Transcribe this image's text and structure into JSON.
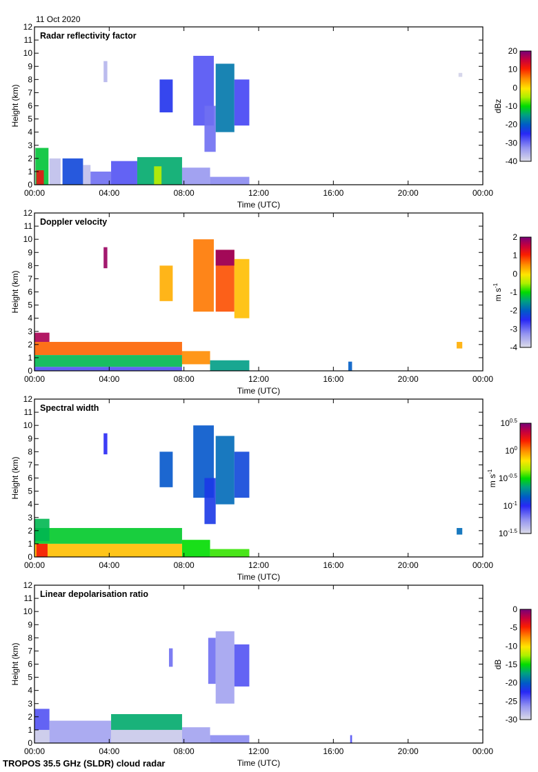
{
  "date_label": "11 Oct 2020",
  "footer": "TROPOS 35.5 GHz (SLDR) cloud radar",
  "chart_data": [
    {
      "type": "heatmap",
      "title": "Radar reflectivity factor",
      "xlabel": "Time (UTC)",
      "ylabel": "Height (km)",
      "xticks": [
        "00:00",
        "04:00",
        "08:00",
        "12:00",
        "16:00",
        "20:00",
        "00:00"
      ],
      "yticks": [
        "0",
        "1",
        "2",
        "3",
        "4",
        "5",
        "6",
        "7",
        "8",
        "9",
        "10",
        "11",
        "12"
      ],
      "ylim": [
        0,
        12
      ],
      "xlim_hours": [
        0,
        24
      ],
      "colorbar": {
        "label": "dBz",
        "range": [
          -40,
          20
        ],
        "ticks": [
          "20",
          "10",
          "0",
          "-10",
          "-20",
          "-30",
          "-40"
        ],
        "tick_values": [
          20,
          10,
          0,
          -10,
          -20,
          -30,
          -40
        ]
      },
      "regions": [
        {
          "t0": 0.05,
          "t1": 0.75,
          "h0": 0,
          "h1": 2.8,
          "v": -12
        },
        {
          "t0": 0.1,
          "t1": 0.5,
          "h0": 0,
          "h1": 1.1,
          "v": 12
        },
        {
          "t0": 0.8,
          "t1": 1.4,
          "h0": 0,
          "h1": 2.0,
          "v": -37
        },
        {
          "t0": 1.5,
          "t1": 2.6,
          "h0": 0,
          "h1": 2.0,
          "v": -22
        },
        {
          "t0": 2.6,
          "t1": 3.0,
          "h0": 0,
          "h1": 1.5,
          "v": -37
        },
        {
          "t0": 3.0,
          "t1": 4.1,
          "h0": 0,
          "h1": 1.0,
          "v": -30
        },
        {
          "t0": 4.1,
          "t1": 5.5,
          "h0": 0,
          "h1": 1.8,
          "v": -28
        },
        {
          "t0": 5.5,
          "t1": 7.9,
          "h0": 0,
          "h1": 2.1,
          "v": -14
        },
        {
          "t0": 6.4,
          "t1": 6.8,
          "h0": 0,
          "h1": 1.4,
          "v": -4
        },
        {
          "t0": 7.9,
          "t1": 9.4,
          "h0": 0,
          "h1": 1.3,
          "v": -33
        },
        {
          "t0": 9.4,
          "t1": 11.5,
          "h0": 0,
          "h1": 0.6,
          "v": -32
        },
        {
          "t0": 3.7,
          "t1": 3.9,
          "h0": 7.8,
          "h1": 9.4,
          "v": -36
        },
        {
          "t0": 6.7,
          "t1": 7.4,
          "h0": 5.5,
          "h1": 8.0,
          "v": -24
        },
        {
          "t0": 8.5,
          "t1": 9.6,
          "h0": 4.5,
          "h1": 9.8,
          "v": -28
        },
        {
          "t0": 9.1,
          "t1": 9.7,
          "h0": 2.5,
          "h1": 6.0,
          "v": -30
        },
        {
          "t0": 9.7,
          "t1": 10.7,
          "h0": 4.0,
          "h1": 9.2,
          "v": -18
        },
        {
          "t0": 10.7,
          "t1": 11.5,
          "h0": 4.5,
          "h1": 8.0,
          "v": -27
        },
        {
          "t0": 22.7,
          "t1": 22.9,
          "h0": 8.2,
          "h1": 8.5,
          "v": -39
        }
      ]
    },
    {
      "type": "heatmap",
      "title": "Doppler velocity",
      "xlabel": "Time (UTC)",
      "ylabel": "Height (km)",
      "xticks": [
        "00:00",
        "04:00",
        "08:00",
        "12:00",
        "16:00",
        "20:00",
        "00:00"
      ],
      "yticks": [
        "0",
        "1",
        "2",
        "3",
        "4",
        "5",
        "6",
        "7",
        "8",
        "9",
        "10",
        "11",
        "12"
      ],
      "ylim": [
        0,
        12
      ],
      "xlim_hours": [
        0,
        24
      ],
      "colorbar": {
        "label": "m s-1",
        "range": [
          -4,
          2
        ],
        "ticks": [
          "2",
          "1",
          "0",
          "-1",
          "-2",
          "-3",
          "-4"
        ],
        "tick_values": [
          2,
          1,
          0,
          -1,
          -2,
          -3,
          -4
        ]
      },
      "regions": [
        {
          "t0": 0.0,
          "t1": 7.9,
          "h0": 1.2,
          "h1": 2.2,
          "v": 0.7
        },
        {
          "t0": 0.0,
          "t1": 0.8,
          "h0": 2.2,
          "h1": 2.9,
          "v": 1.7
        },
        {
          "t0": 0.0,
          "t1": 7.9,
          "h0": 0.3,
          "h1": 1.2,
          "v": -1.3
        },
        {
          "t0": 0.0,
          "t1": 7.9,
          "h0": 0,
          "h1": 0.3,
          "v": -2.8
        },
        {
          "t0": 7.9,
          "t1": 9.4,
          "h0": 0.5,
          "h1": 1.5,
          "v": 0.5
        },
        {
          "t0": 9.4,
          "t1": 11.5,
          "h0": 0,
          "h1": 0.8,
          "v": -1.5
        },
        {
          "t0": 3.7,
          "t1": 3.9,
          "h0": 7.8,
          "h1": 9.4,
          "v": 1.8
        },
        {
          "t0": 6.7,
          "t1": 7.4,
          "h0": 5.3,
          "h1": 8.0,
          "v": 0.3
        },
        {
          "t0": 8.5,
          "t1": 9.6,
          "h0": 4.5,
          "h1": 10.0,
          "v": 0.6
        },
        {
          "t0": 9.7,
          "t1": 10.7,
          "h0": 4.5,
          "h1": 9.2,
          "v": 0.8
        },
        {
          "t0": 9.7,
          "t1": 10.7,
          "h0": 8.0,
          "h1": 9.2,
          "v": 1.8
        },
        {
          "t0": 10.7,
          "t1": 11.5,
          "h0": 4.0,
          "h1": 8.5,
          "v": 0.2
        },
        {
          "t0": 22.6,
          "t1": 22.9,
          "h0": 1.7,
          "h1": 2.2,
          "v": 0.3
        },
        {
          "t0": 16.8,
          "t1": 17.0,
          "h0": 0,
          "h1": 0.7,
          "v": -2.0
        }
      ]
    },
    {
      "type": "heatmap",
      "title": "Spectral width",
      "xlabel": "Time (UTC)",
      "ylabel": "Height (km)",
      "xticks": [
        "00:00",
        "04:00",
        "08:00",
        "12:00",
        "16:00",
        "20:00",
        "00:00"
      ],
      "yticks": [
        "0",
        "1",
        "2",
        "3",
        "4",
        "5",
        "6",
        "7",
        "8",
        "9",
        "10",
        "11",
        "12"
      ],
      "ylim": [
        0,
        12
      ],
      "xlim_hours": [
        0,
        24
      ],
      "colorbar": {
        "label": "m s-1",
        "range": [
          -1.5,
          0.5
        ],
        "scale": "log10",
        "ticks": [
          "10^0.5",
          "10^0",
          "10^-0.5",
          "10^-1",
          "10^-1.5"
        ],
        "tick_values": [
          0.5,
          0,
          -0.5,
          -1,
          -1.5
        ]
      },
      "regions": [
        {
          "t0": 0.0,
          "t1": 7.9,
          "h0": 1.0,
          "h1": 2.2,
          "v": -0.55
        },
        {
          "t0": 0.0,
          "t1": 0.8,
          "h0": 1.2,
          "h1": 2.9,
          "v": -0.6
        },
        {
          "t0": 0.0,
          "t1": 7.9,
          "h0": 0,
          "h1": 1.0,
          "v": -0.1
        },
        {
          "t0": 0.1,
          "t1": 0.7,
          "h0": 0,
          "h1": 1.0,
          "v": 0.2
        },
        {
          "t0": 7.9,
          "t1": 9.4,
          "h0": 0,
          "h1": 1.3,
          "v": -0.5
        },
        {
          "t0": 9.4,
          "t1": 11.5,
          "h0": 0,
          "h1": 0.6,
          "v": -0.45
        },
        {
          "t0": 3.7,
          "t1": 3.9,
          "h0": 7.8,
          "h1": 9.4,
          "v": -1.0
        },
        {
          "t0": 6.7,
          "t1": 7.4,
          "h0": 5.3,
          "h1": 8.0,
          "v": -0.85
        },
        {
          "t0": 8.5,
          "t1": 9.6,
          "h0": 4.5,
          "h1": 10.0,
          "v": -0.85
        },
        {
          "t0": 9.1,
          "t1": 9.7,
          "h0": 2.5,
          "h1": 6.0,
          "v": -0.95
        },
        {
          "t0": 9.7,
          "t1": 10.7,
          "h0": 4.0,
          "h1": 9.2,
          "v": -0.8
        },
        {
          "t0": 10.7,
          "t1": 11.5,
          "h0": 4.5,
          "h1": 8.0,
          "v": -0.9
        },
        {
          "t0": 22.6,
          "t1": 22.9,
          "h0": 1.7,
          "h1": 2.2,
          "v": -0.8
        }
      ]
    },
    {
      "type": "heatmap",
      "title": "Linear depolarisation ratio",
      "xlabel": "Time (UTC)",
      "ylabel": "Height (km)",
      "xticks": [
        "00:00",
        "04:00",
        "08:00",
        "12:00",
        "16:00",
        "20:00",
        "00:00"
      ],
      "yticks": [
        "0",
        "1",
        "2",
        "3",
        "4",
        "5",
        "6",
        "7",
        "8",
        "9",
        "10",
        "11",
        "12"
      ],
      "ylim": [
        0,
        12
      ],
      "xlim_hours": [
        0,
        24
      ],
      "colorbar": {
        "label": "dB",
        "range": [
          -30,
          0
        ],
        "ticks": [
          "0",
          "-5",
          "-10",
          "-15",
          "-20",
          "-25",
          "-30"
        ],
        "tick_values": [
          0,
          -5,
          -10,
          -15,
          -20,
          -25,
          -30
        ]
      },
      "regions": [
        {
          "t0": 0.0,
          "t1": 0.8,
          "h0": 0,
          "h1": 1.0,
          "v": -29
        },
        {
          "t0": 0.0,
          "t1": 0.8,
          "h0": 1.0,
          "h1": 2.6,
          "v": -24
        },
        {
          "t0": 0.8,
          "t1": 4.1,
          "h0": 0,
          "h1": 1.7,
          "v": -27
        },
        {
          "t0": 4.1,
          "t1": 7.9,
          "h0": 0,
          "h1": 1.0,
          "v": -29
        },
        {
          "t0": 4.1,
          "t1": 7.9,
          "h0": 1.0,
          "h1": 2.2,
          "v": -17
        },
        {
          "t0": 7.9,
          "t1": 9.4,
          "h0": 0,
          "h1": 1.2,
          "v": -27
        },
        {
          "t0": 9.4,
          "t1": 11.5,
          "h0": 0,
          "h1": 0.6,
          "v": -26
        },
        {
          "t0": 7.2,
          "t1": 7.4,
          "h0": 5.8,
          "h1": 7.2,
          "v": -25
        },
        {
          "t0": 9.3,
          "t1": 9.7,
          "h0": 4.5,
          "h1": 8.0,
          "v": -25
        },
        {
          "t0": 9.7,
          "t1": 10.7,
          "h0": 3.0,
          "h1": 8.5,
          "v": -27
        },
        {
          "t0": 10.7,
          "t1": 11.5,
          "h0": 4.3,
          "h1": 7.5,
          "v": -24
        },
        {
          "t0": 16.9,
          "t1": 17.0,
          "h0": 0,
          "h1": 0.6,
          "v": -24
        }
      ]
    }
  ]
}
